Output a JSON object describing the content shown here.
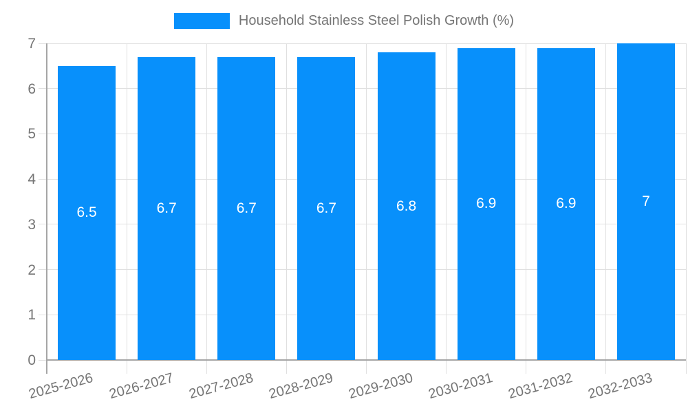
{
  "legend": {
    "label": "Household Stainless Steel Polish Growth (%)"
  },
  "colors": {
    "bar": "#0890fb",
    "bar_label": "#ffffff",
    "grid": "#e0e0e0",
    "axis": "#a6a6a6",
    "text": "#757575",
    "background": "#ffffff"
  },
  "chart_data": {
    "type": "bar",
    "title": "Household Stainless Steel Polish Growth (%)",
    "categories": [
      "2025-2026",
      "2026-2027",
      "2027-2028",
      "2028-2029",
      "2029-2030",
      "2030-2031",
      "2031-2032",
      "2032-2033"
    ],
    "values": [
      6.5,
      6.7,
      6.7,
      6.7,
      6.8,
      6.9,
      6.9,
      7
    ],
    "bar_labels": [
      "6.5",
      "6.7",
      "6.7",
      "6.7",
      "6.8",
      "6.9",
      "6.9",
      "7"
    ],
    "xlabel": "",
    "ylabel": "",
    "ylim": [
      0,
      7
    ],
    "yticks": [
      0,
      1,
      2,
      3,
      4,
      5,
      6,
      7
    ],
    "grid": true,
    "legend_position": "top-center",
    "x_label_rotation_deg": -15
  }
}
